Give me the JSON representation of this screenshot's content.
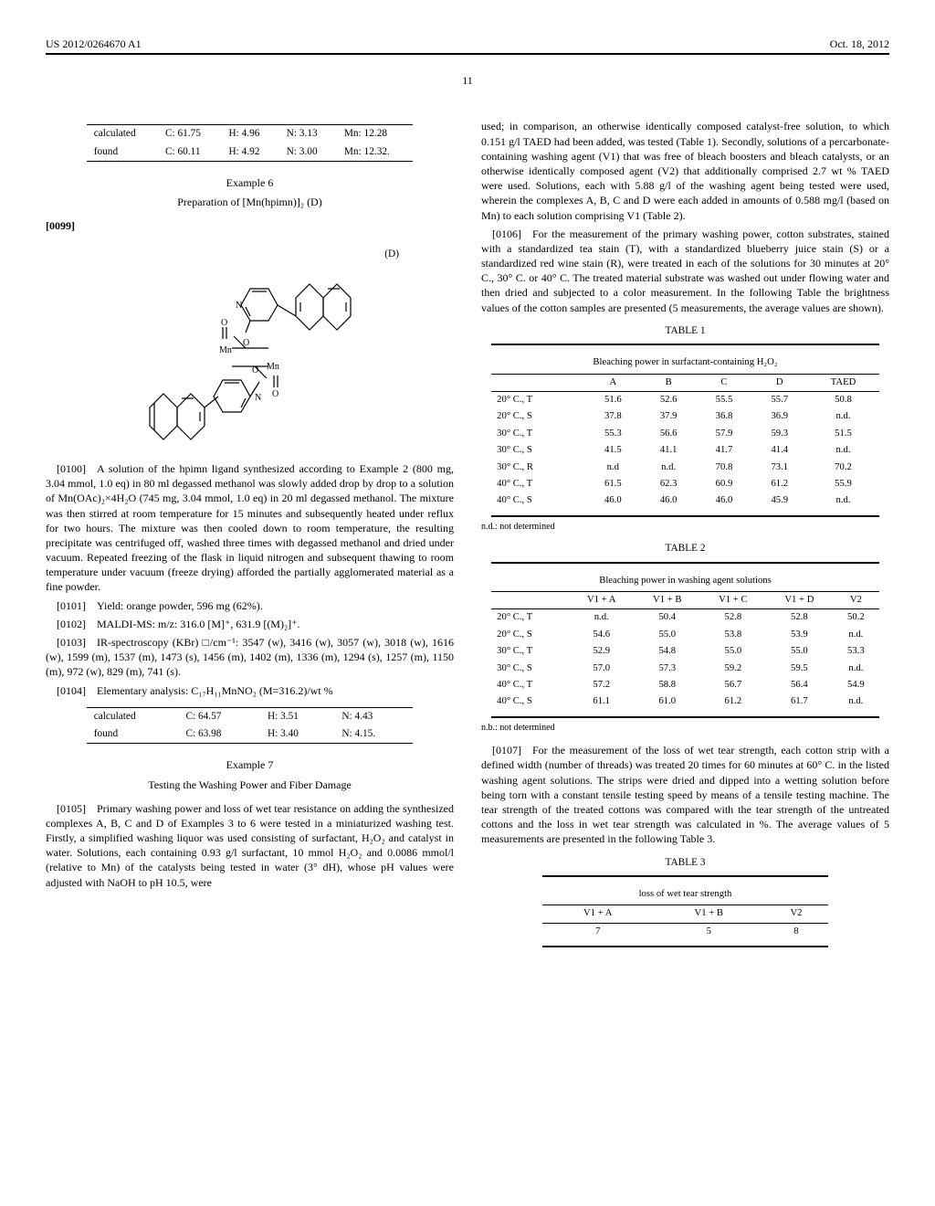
{
  "header": {
    "pub_number": "US 2012/0264670 A1",
    "date": "Oct. 18, 2012"
  },
  "page_number": "11",
  "left": {
    "elemental_top": {
      "rows": [
        {
          "label": "calculated",
          "c": "C: 61.75",
          "h": "H: 4.96",
          "n": "N: 3.13",
          "mn": "Mn: 12.28"
        },
        {
          "label": "found",
          "c": "C: 60.11",
          "h": "H: 4.92",
          "n": "N: 3.00",
          "mn": "Mn: 12.32."
        }
      ]
    },
    "example6_title": "Example 6",
    "example6_subtitle": "Preparation of [Mn(hpimn)]₂ (D)",
    "para_0099": "[0099]",
    "compound_label": "(D)",
    "para_0100": "[0100] A solution of the hpimn ligand synthesized according to Example 2 (800 mg, 3.04 mmol, 1.0 eq) in 80 ml degassed methanol was slowly added drop by drop to a solution of Mn(OAc)₂×4H₂O (745 mg, 3.04 mmol, 1.0 eq) in 20 ml degassed methanol. The mixture was then stirred at room temperature for 15 minutes and subsequently heated under reflux for two hours. The mixture was then cooled down to room temperature, the resulting precipitate was centrifuged off, washed three times with degassed methanol and dried under vacuum. Repeated freezing of the flask in liquid nitrogen and subsequent thawing to room temperature under vacuum (freeze drying) afforded the partially agglomerated material as a fine powder.",
    "para_0101": "[0101] Yield: orange powder, 596 mg (62%).",
    "para_0102": "[0102] MALDI-MS: m/z: 316.0 [M]⁺, 631.9 [(M)₂]⁺.",
    "para_0103": "[0103] IR-spectroscopy (KBr) □/cm⁻¹: 3547 (w), 3416 (w), 3057 (w), 3018 (w), 1616 (w), 1599 (m), 1537 (m), 1473 (s), 1456 (m), 1402 (m), 1336 (m), 1294 (s), 1257 (m), 1150 (m), 972 (w), 829 (m), 741 (s).",
    "para_0104": "[0104] Elementary analysis: C₁₇H₁₁MnNO₂ (M=316.2)/wt %",
    "elemental_bottom": {
      "rows": [
        {
          "label": "calculated",
          "c": "C: 64.57",
          "h": "H: 3.51",
          "n": "N: 4.43"
        },
        {
          "label": "found",
          "c": "C: 63.98",
          "h": "H: 3.40",
          "n": "N: 4.15."
        }
      ]
    },
    "example7_title": "Example 7",
    "example7_subtitle": "Testing the Washing Power and Fiber Damage",
    "para_0105": "[0105] Primary washing power and loss of wet tear resistance on adding the synthesized complexes A, B, C and D of Examples 3 to 6 were tested in a miniaturized washing test. Firstly, a simplified washing liquor was used consisting of surfactant, H₂O₂ and catalyst in water. Solutions, each containing 0.93 g/l surfactant, 10 mmol H₂O₂ and 0.0086 mmol/l (relative to Mn) of the catalysts being tested in water (3° dH), whose pH values were adjusted with NaOH to pH 10.5, were"
  },
  "right": {
    "para_0105_cont": "used; in comparison, an otherwise identically composed catalyst-free solution, to which 0.151 g/l TAED had been added, was tested (Table 1). Secondly, solutions of a percarbonate-containing washing agent (V1) that was free of bleach boosters and bleach catalysts, or an otherwise identically composed agent (V2) that additionally comprised 2.7 wt % TAED were used. Solutions, each with 5.88 g/l of the washing agent being tested were used, wherein the complexes A, B, C and D were each added in amounts of 0.588 mg/l (based on Mn) to each solution comprising V1 (Table 2).",
    "para_0106": "[0106] For the measurement of the primary washing power, cotton substrates, stained with a standardized tea stain (T), with a standardized blueberry juice stain (S) or a standardized red wine stain (R), were treated in each of the solutions for 30 minutes at 20° C., 30° C. or 40° C. The treated material substrate was washed out under flowing water and then dried and subjected to a color measurement. In the following Table the brightness values of the cotton samples are presented (5 measurements, the average values are shown).",
    "table1": {
      "label": "TABLE 1",
      "title": "Bleaching power in surfactant-containing H₂O₂",
      "headers": [
        "",
        "A",
        "B",
        "C",
        "D",
        "TAED"
      ],
      "rows": [
        [
          "20° C., T",
          "51.6",
          "52.6",
          "55.5",
          "55.7",
          "50.8"
        ],
        [
          "20° C., S",
          "37.8",
          "37.9",
          "36.8",
          "36.9",
          "n.d."
        ],
        [
          "30° C., T",
          "55.3",
          "56.6",
          "57.9",
          "59.3",
          "51.5"
        ],
        [
          "30° C., S",
          "41.5",
          "41.1",
          "41.7",
          "41.4",
          "n.d."
        ],
        [
          "30° C., R",
          "n.d",
          "n.d.",
          "70.8",
          "73.1",
          "70.2"
        ],
        [
          "40° C., T",
          "61.5",
          "62.3",
          "60.9",
          "61.2",
          "55.9"
        ],
        [
          "40° C., S",
          "46.0",
          "46.0",
          "46.0",
          "45.9",
          "n.d."
        ]
      ],
      "footnote": "n.d.: not determined"
    },
    "table2": {
      "label": "TABLE 2",
      "title": "Bleaching power in washing agent solutions",
      "headers": [
        "",
        "V1 + A",
        "V1 + B",
        "V1 + C",
        "V1 + D",
        "V2"
      ],
      "rows": [
        [
          "20° C., T",
          "n.d.",
          "50.4",
          "52.8",
          "52.8",
          "50.2"
        ],
        [
          "20° C., S",
          "54.6",
          "55.0",
          "53.8",
          "53.9",
          "n.d."
        ],
        [
          "30° C., T",
          "52.9",
          "54.8",
          "55.0",
          "55.0",
          "53.3"
        ],
        [
          "30° C., S",
          "57.0",
          "57.3",
          "59.2",
          "59.5",
          "n.d."
        ],
        [
          "40° C., T",
          "57.2",
          "58.8",
          "56.7",
          "56.4",
          "54.9"
        ],
        [
          "40° C., S",
          "61.1",
          "61.0",
          "61.2",
          "61.7",
          "n.d."
        ]
      ],
      "footnote": "n.b.: not determined"
    },
    "para_0107": "[0107] For the measurement of the loss of wet tear strength, each cotton strip with a defined width (number of threads) was treated 20 times for 60 minutes at 60° C. in the listed washing agent solutions. The strips were dried and dipped into a wetting solution before being torn with a constant tensile testing speed by means of a tensile testing machine. The tear strength of the treated cottons was compared with the tear strength of the untreated cottons and the loss in wet tear strength was calculated in %. The average values of 5 measurements are presented in the following Table 3.",
    "table3": {
      "label": "TABLE 3",
      "title": "loss of wet tear strength",
      "headers": [
        "V1 + A",
        "V1 + B",
        "V2"
      ],
      "rows": [
        [
          "7",
          "5",
          "8"
        ]
      ]
    }
  }
}
